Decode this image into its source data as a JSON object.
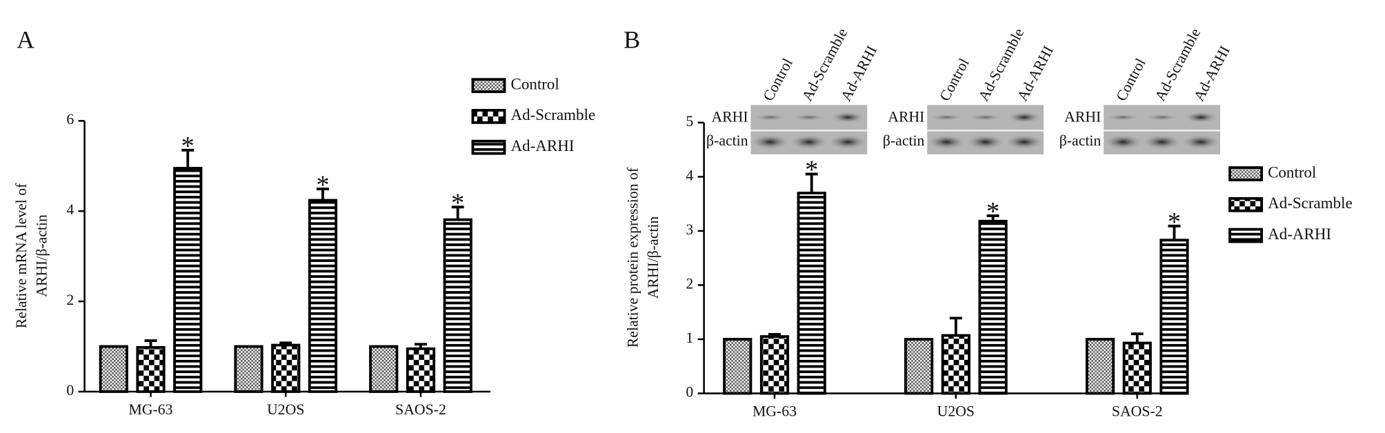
{
  "chart_data": [
    {
      "type": "bar",
      "panel_label": "A",
      "ylabel": [
        "Relative mRNA level of",
        "ARHI/β-actin"
      ],
      "categories": [
        "MG-63",
        "U2OS",
        "SAOS-2"
      ],
      "ylim": [
        0,
        6
      ],
      "yticks": [
        0,
        2,
        4,
        6
      ],
      "series": [
        {
          "name": "Control",
          "color": "#000000",
          "pattern": "fine-check",
          "values": [
            1.0,
            1.0,
            1.0
          ],
          "errors": [
            0,
            0,
            0
          ]
        },
        {
          "name": "Ad-Scramble",
          "color": "#000000",
          "pattern": "check",
          "values": [
            0.98,
            1.03,
            0.95
          ],
          "errors": [
            0.15,
            0.05,
            0.1
          ]
        },
        {
          "name": "Ad-ARHI",
          "color": "#000000",
          "pattern": "hstripes",
          "values": [
            4.95,
            4.24,
            3.81
          ],
          "errors": [
            0.4,
            0.25,
            0.28
          ],
          "significance": "*"
        }
      ]
    },
    {
      "type": "bar",
      "panel_label": "B",
      "ylabel": [
        "Relative protein expression of",
        "ARHI/β-actin"
      ],
      "categories": [
        "MG-63",
        "U2OS",
        "SAOS-2"
      ],
      "ylim": [
        0,
        5
      ],
      "yticks": [
        0,
        1,
        2,
        3,
        4,
        5
      ],
      "blot": {
        "rows": [
          "ARHI",
          "β-actin"
        ],
        "lanes": [
          "Control",
          "Ad-Scramble",
          "Ad-ARHI"
        ]
      },
      "series": [
        {
          "name": "Control",
          "color": "#000000",
          "pattern": "fine-check",
          "values": [
            1.0,
            1.0,
            1.0
          ],
          "errors": [
            0,
            0,
            0
          ]
        },
        {
          "name": "Ad-Scramble",
          "color": "#000000",
          "pattern": "check",
          "values": [
            1.05,
            1.07,
            0.93
          ],
          "errors": [
            0.04,
            0.32,
            0.17
          ]
        },
        {
          "name": "Ad-ARHI",
          "color": "#000000",
          "pattern": "hstripes",
          "values": [
            3.7,
            3.18,
            2.83
          ],
          "errors": [
            0.35,
            0.1,
            0.26
          ],
          "significance": "*"
        }
      ]
    }
  ]
}
